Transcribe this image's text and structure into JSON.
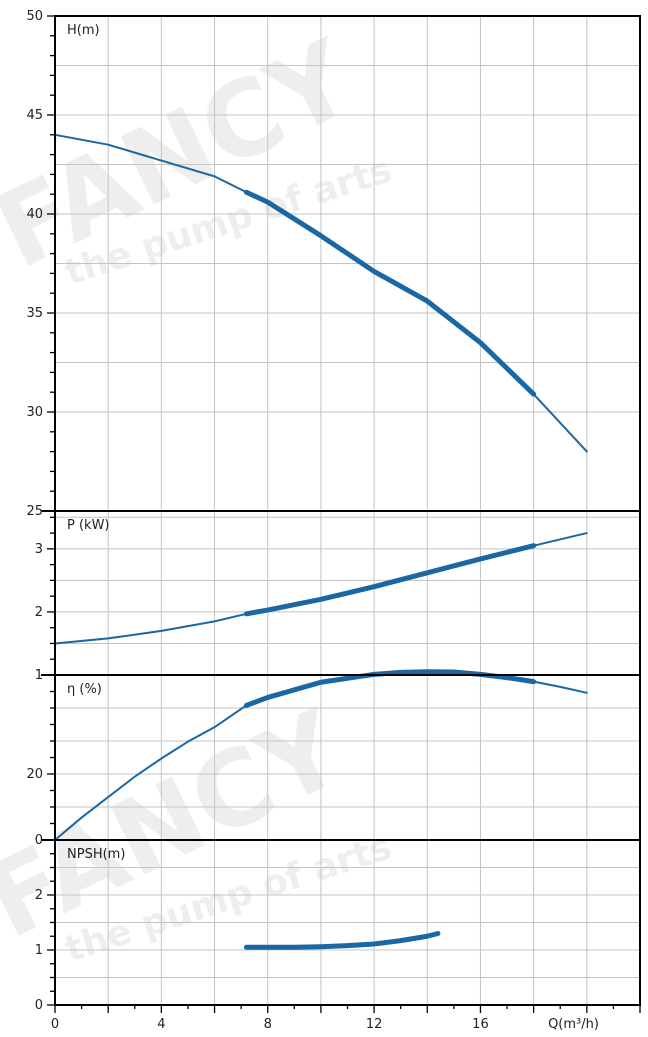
{
  "watermark": {
    "brand": "FANCY",
    "tagline": "the pump of arts"
  },
  "colors": {
    "curve": "#1a67a3",
    "grid": "#c4c4c4",
    "axis": "#000000",
    "background": "#ffffff"
  },
  "chart_data": [
    {
      "id": "head",
      "type": "line",
      "label": "H(m)",
      "ylim": [
        25,
        50
      ],
      "yticks": [
        25,
        30,
        35,
        40,
        45,
        50
      ],
      "ytick_labels": [
        "25",
        "30",
        "35",
        "40",
        "45",
        "50"
      ],
      "grid": true,
      "series": [
        {
          "style": "thin",
          "points": [
            [
              0,
              44
            ],
            [
              2,
              43.5
            ],
            [
              4,
              42.7
            ],
            [
              6,
              41.9
            ],
            [
              7.2,
              41.1
            ],
            [
              8,
              40.6
            ],
            [
              10,
              38.9
            ],
            [
              12,
              37.1
            ],
            [
              14,
              35.6
            ],
            [
              16,
              33.5
            ],
            [
              18,
              30.9
            ],
            [
              20,
              28
            ]
          ]
        },
        {
          "style": "thick",
          "points": [
            [
              7.2,
              41.1
            ],
            [
              8,
              40.6
            ],
            [
              10,
              38.9
            ],
            [
              12,
              37.1
            ],
            [
              14,
              35.6
            ],
            [
              16,
              33.5
            ],
            [
              18,
              30.9
            ]
          ]
        }
      ]
    },
    {
      "id": "power",
      "type": "line",
      "label": "P (kW)",
      "ylim": [
        1,
        3.6
      ],
      "yticks": [
        1,
        2,
        3
      ],
      "ytick_labels": [
        "1",
        "2",
        "3"
      ],
      "grid": true,
      "series": [
        {
          "style": "thin",
          "points": [
            [
              0,
              1.5
            ],
            [
              2,
              1.58
            ],
            [
              4,
              1.7
            ],
            [
              6,
              1.85
            ],
            [
              7.2,
              1.97
            ],
            [
              8,
              2.03
            ],
            [
              10,
              2.2
            ],
            [
              12,
              2.4
            ],
            [
              14,
              2.62
            ],
            [
              16,
              2.84
            ],
            [
              18,
              3.05
            ],
            [
              20,
              3.25
            ]
          ]
        },
        {
          "style": "thick",
          "points": [
            [
              7.2,
              1.97
            ],
            [
              8,
              2.03
            ],
            [
              10,
              2.2
            ],
            [
              12,
              2.4
            ],
            [
              14,
              2.62
            ],
            [
              16,
              2.84
            ],
            [
              18,
              3.05
            ]
          ]
        }
      ]
    },
    {
      "id": "efficiency",
      "type": "line",
      "label": "η (%)",
      "ylim": [
        0,
        50
      ],
      "yticks": [
        0,
        20
      ],
      "ytick_labels": [
        "0",
        "20"
      ],
      "grid": true,
      "series": [
        {
          "style": "thin",
          "points": [
            [
              0,
              0
            ],
            [
              1,
              6.8
            ],
            [
              2,
              13
            ],
            [
              3,
              19.2
            ],
            [
              4,
              24.7
            ],
            [
              5,
              29.8
            ],
            [
              6,
              34.2
            ],
            [
              7.2,
              40.8
            ],
            [
              8,
              43.2
            ],
            [
              10,
              47.8
            ],
            [
              11.5,
              49.6
            ],
            [
              12,
              50.2
            ],
            [
              13,
              50.8
            ],
            [
              14,
              51
            ],
            [
              15,
              50.9
            ],
            [
              16,
              50.2
            ],
            [
              17,
              49.2
            ],
            [
              18,
              48
            ],
            [
              19,
              46.4
            ],
            [
              20,
              44.6
            ]
          ]
        },
        {
          "style": "thick",
          "points": [
            [
              7.2,
              40.8
            ],
            [
              8,
              43.2
            ],
            [
              10,
              47.8
            ],
            [
              11.5,
              49.6
            ],
            [
              12,
              50.2
            ],
            [
              13,
              50.8
            ],
            [
              14,
              51
            ],
            [
              15,
              50.9
            ],
            [
              16,
              50.2
            ],
            [
              17,
              49.2
            ],
            [
              18,
              48
            ]
          ]
        }
      ]
    },
    {
      "id": "npsh",
      "type": "line",
      "label": "NPSH(m)",
      "ylim": [
        0,
        3
      ],
      "yticks": [
        0,
        1,
        2
      ],
      "ytick_labels": [
        "0",
        "1",
        "2"
      ],
      "grid": true,
      "xlabel": "Q(m³/h)",
      "xlim": [
        0,
        22
      ],
      "xticks": [
        0,
        4,
        8,
        12,
        16
      ],
      "xtick_labels": [
        "0",
        "4",
        "8",
        "12",
        "16"
      ],
      "series": [
        {
          "style": "thick",
          "points": [
            [
              7.2,
              1.05
            ],
            [
              8,
              1.05
            ],
            [
              9,
              1.05
            ],
            [
              10,
              1.06
            ],
            [
              11,
              1.08
            ],
            [
              12,
              1.11
            ],
            [
              13,
              1.17
            ],
            [
              14,
              1.25
            ],
            [
              14.4,
              1.3
            ]
          ]
        }
      ]
    }
  ]
}
